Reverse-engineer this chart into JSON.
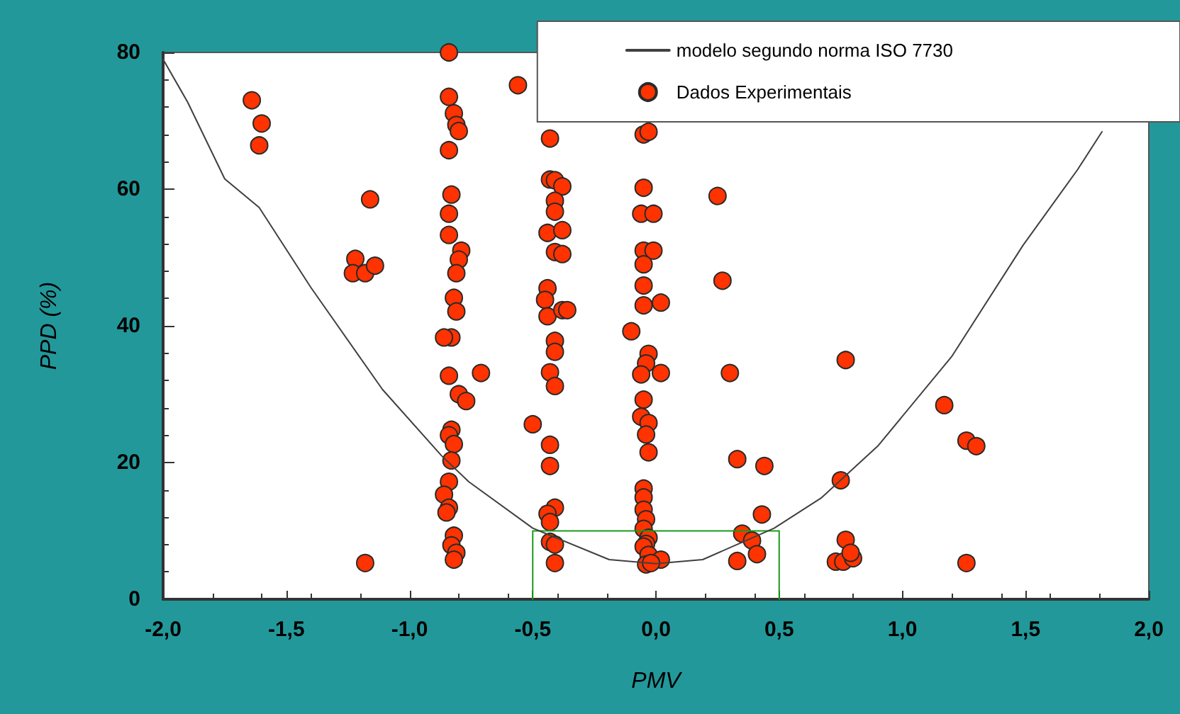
{
  "chart_data": {
    "type": "scatter",
    "xlabel": "PMV",
    "ylabel": "PPD (%)",
    "xlim": [
      -2,
      2
    ],
    "ylim": [
      0,
      80
    ],
    "xticks": [
      {
        "value": -2,
        "label": "-2,0"
      },
      {
        "value": -1.5,
        "label": "-1,5"
      },
      {
        "value": -1,
        "label": "-1,0"
      },
      {
        "value": -0.5,
        "label": "-0,5"
      },
      {
        "value": 0,
        "label": "0,0"
      },
      {
        "value": 0.5,
        "label": "0,5"
      },
      {
        "value": 1,
        "label": "1,0"
      },
      {
        "value": 1.5,
        "label": "1,5"
      },
      {
        "value": 2,
        "label": "2,0"
      }
    ],
    "yticks": [
      0,
      20,
      40,
      60,
      80
    ],
    "grid": false,
    "legend": "top right",
    "series": [
      {
        "type": "line",
        "color": "#1a9a1a",
        "marker": "none",
        "line_style": "solid",
        "x": [
          -0.5,
          -0.5,
          0.5,
          0.5
        ],
        "values": [
          0,
          10,
          10,
          0
        ]
      },
      {
        "name": "modelo segundo norma ISO 7730",
        "type": "line",
        "color": "#404040",
        "marker": "none",
        "line_style": "solid",
        "x": [
          -2,
          -1.9,
          -1.75,
          -1.61,
          -1.4,
          -1.11,
          -0.87,
          -0.76,
          -0.5,
          -0.19,
          0,
          0.19,
          0.48,
          0.67,
          0.9,
          1.2,
          1.49,
          1.71,
          1.81
        ],
        "values": [
          79,
          72.7,
          61.5,
          57.3,
          45.6,
          30.7,
          21,
          17.2,
          10.4,
          5.8,
          5.2,
          5.8,
          10.4,
          14.8,
          22.4,
          35.5,
          51.8,
          62.8,
          68.4
        ]
      },
      {
        "name": "Dados Experimentais",
        "color": "#ff3300",
        "marker": "circle",
        "x": [
          -1.64,
          -1.6,
          -1.61,
          -1.16,
          -1.22,
          -1.23,
          -1.18,
          -1.14,
          -1.18,
          -0.84,
          -0.84,
          -0.82,
          -0.81,
          -0.8,
          -0.84,
          -0.83,
          -0.84,
          -0.84,
          -0.79,
          -0.8,
          -0.81,
          -0.82,
          -0.81,
          -0.83,
          -0.86,
          -0.84,
          -0.8,
          -0.77,
          -0.83,
          -0.84,
          -0.82,
          -0.83,
          -0.84,
          -0.86,
          -0.84,
          -0.85,
          -0.82,
          -0.83,
          -0.81,
          -0.82,
          -0.56,
          -0.71,
          -0.5,
          -0.43,
          -0.43,
          -0.41,
          -0.38,
          -0.41,
          -0.41,
          -0.44,
          -0.38,
          -0.41,
          -0.38,
          -0.44,
          -0.45,
          -0.44,
          -0.38,
          -0.36,
          -0.41,
          -0.41,
          -0.43,
          -0.41,
          -0.43,
          -0.43,
          -0.41,
          -0.44,
          -0.43,
          -0.43,
          -0.41,
          -0.41,
          -0.05,
          -0.03,
          -0.05,
          -0.06,
          -0.01,
          -0.05,
          -0.01,
          -0.05,
          -0.05,
          -0.05,
          0.02,
          -0.1,
          -0.03,
          -0.04,
          -0.06,
          -0.05,
          -0.06,
          -0.03,
          -0.04,
          -0.03,
          -0.05,
          -0.05,
          -0.05,
          -0.04,
          -0.05,
          -0.03,
          -0.04,
          -0.05,
          -0.03,
          0.02,
          -0.04,
          -0.02,
          0.02,
          0.25,
          0.27,
          0.3,
          0.33,
          0.44,
          0.43,
          0.35,
          0.39,
          0.41,
          0.33,
          0.77,
          0.75,
          0.77,
          0.73,
          0.76,
          0.8,
          0.79,
          1.17,
          1.26,
          1.3,
          1.26
        ],
        "values": [
          73,
          69.6,
          66.4,
          58.5,
          49.8,
          47.7,
          47.7,
          48.8,
          5.3,
          80,
          73.5,
          71.1,
          69.4,
          68.5,
          65.7,
          59.2,
          56.4,
          53.3,
          51,
          49.7,
          47.7,
          44.1,
          42.1,
          38.3,
          38.3,
          32.7,
          30,
          29,
          24.8,
          24,
          22.7,
          20.3,
          17.2,
          15.3,
          13.4,
          12.7,
          9.3,
          7.9,
          6.8,
          5.8,
          75.2,
          33.1,
          25.6,
          67.4,
          61.4,
          61.3,
          60.4,
          58.3,
          56.7,
          53.6,
          54,
          50.8,
          50.5,
          45.5,
          43.8,
          41.4,
          42.3,
          42.3,
          37.8,
          36.2,
          33.2,
          31.2,
          22.6,
          19.5,
          13.4,
          12.5,
          11.3,
          8.4,
          8,
          5.3,
          68,
          68.4,
          60.2,
          56.4,
          56.4,
          51,
          51,
          49,
          45.9,
          43,
          43.4,
          39.2,
          35.9,
          34.5,
          32.9,
          29.2,
          26.7,
          25.8,
          24.1,
          21.5,
          16.2,
          14.9,
          13.1,
          11.7,
          10.3,
          9,
          8.1,
          7.7,
          6.5,
          5.8,
          5.1,
          5.3,
          33.1,
          59,
          46.6,
          33.1,
          20.5,
          19.5,
          12.4,
          9.6,
          8.6,
          6.6,
          5.6,
          35,
          17.4,
          8.7,
          5.5,
          5.5,
          6,
          6.8,
          28.4,
          23.2,
          22.4,
          5.3
        ]
      }
    ]
  }
}
